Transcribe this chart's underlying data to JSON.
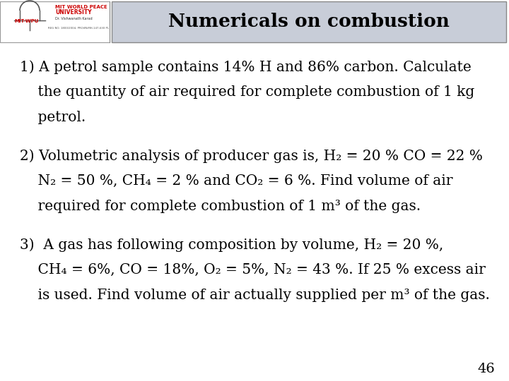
{
  "title": "Numericals on combustion",
  "title_bg": "#c8cdd8",
  "title_border": "#5a5a5a",
  "bg_color": "#ffffff",
  "title_fontsize": 19,
  "body_fontsize": 14.5,
  "page_number": "46",
  "lines": [
    "1) A petrol sample contains 14% H and 86% carbon. Calculate",
    "    the quantity of air required for complete combustion of 1 kg",
    "    petrol.",
    "",
    "2) Volumetric analysis of producer gas is, H₂ = 20 % CO = 22 %",
    "    N₂ = 50 %, CH₄ = 2 % and CO₂ = 6 %. Find volume of air",
    "    required for complete combustion of 1 m³ of the gas.",
    "",
    "3)  A gas has following composition by volume, H₂ = 20 %,",
    "    CH₄ = 6%, CO = 18%, O₂ = 5%, N₂ = 43 %. If 25 % excess air",
    "    is used. Find volume of air actually supplied per m³ of the gas."
  ]
}
